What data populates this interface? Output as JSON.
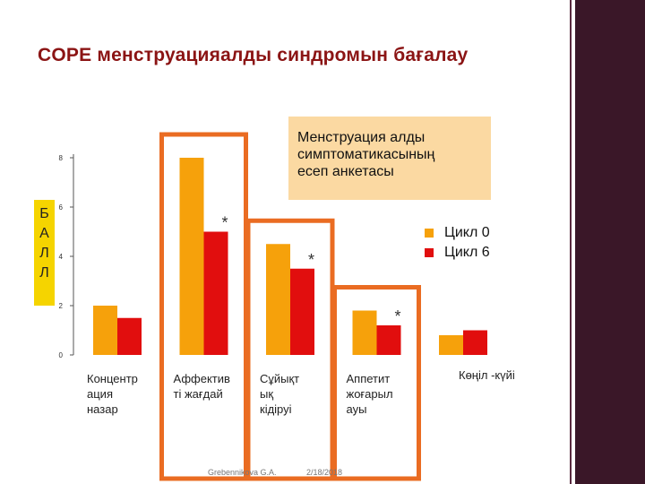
{
  "title": "COPE менструацияалды синдромын бағалау",
  "callout": [
    "Менструация алды",
    "симптоматикасының",
    "есеп анкетасы"
  ],
  "y_axis_letters": [
    "Б",
    "А",
    "Л",
    "Л"
  ],
  "colors": {
    "cycle0": "#f6a10b",
    "cycle6": "#e10e0e",
    "highlight": "#ea6c22",
    "title": "#8b1414"
  },
  "footer": {
    "author": "Grebennikova G.A.",
    "date": "2/18/2018"
  },
  "chart_data": {
    "type": "bar",
    "categories": [
      "Концентрация назар",
      "Аффективті жағдай",
      "Сұйықтық кідіруі",
      "Аппетит жоғарылауы",
      "Көңіл -күйі"
    ],
    "category_lines": [
      [
        "Концентр",
        "ация",
        "назар"
      ],
      [
        "Аффектив",
        "ті жағдай"
      ],
      [
        "Сұйықт",
        "ық",
        "кідіруі"
      ],
      [
        "Аппетит",
        "жоғарыл",
        "ауы"
      ],
      [
        "Көңіл -күйі"
      ]
    ],
    "series": [
      {
        "name": "Цикл 0",
        "values": [
          2.0,
          8.0,
          4.5,
          1.8,
          0.8
        ]
      },
      {
        "name": "Цикл 6",
        "values": [
          1.5,
          5.0,
          3.5,
          1.2,
          1.0
        ]
      }
    ],
    "significant": [
      false,
      true,
      true,
      true,
      false
    ],
    "significance_marker": "*",
    "highlighted": [
      false,
      true,
      true,
      true,
      false
    ],
    "ylim": [
      0,
      8
    ],
    "yticks": [
      0,
      2,
      4,
      6,
      8
    ],
    "legend_position": "right"
  }
}
